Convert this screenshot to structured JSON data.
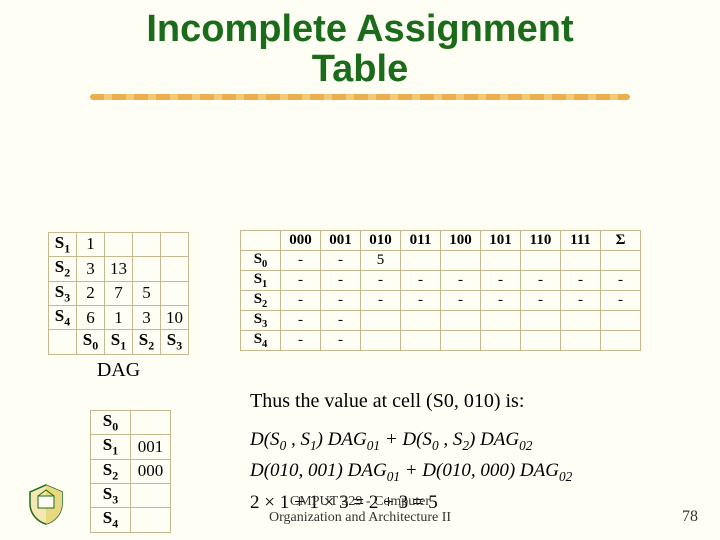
{
  "title_line1": "Incomplete Assignment",
  "title_line2": "Table",
  "dag": {
    "label": "DAG",
    "row_headers": [
      "S₁",
      "S₂",
      "S₃",
      "S₄"
    ],
    "col_headers": [
      "S₀",
      "S₁",
      "S₂",
      "S₃"
    ],
    "rows": [
      [
        "1",
        "",
        "",
        ""
      ],
      [
        "3",
        "13",
        "",
        ""
      ],
      [
        "2",
        "7",
        "5",
        ""
      ],
      [
        "6",
        "1",
        "3",
        "10"
      ]
    ]
  },
  "assign": {
    "row_headers": [
      "S₀",
      "S₁",
      "S₂",
      "S₃",
      "S₄"
    ],
    "col_headers": [
      "000",
      "001",
      "010",
      "011",
      "100",
      "101",
      "110",
      "111",
      "Σ"
    ],
    "rows": [
      [
        "-",
        "-",
        "5",
        "",
        "",
        "",
        "",
        "",
        ""
      ],
      [
        "-",
        "-",
        "-",
        "-",
        "-",
        "-",
        "-",
        "-",
        "-"
      ],
      [
        "-",
        "-",
        "-",
        "-",
        "-",
        "-",
        "-",
        "-",
        "-"
      ],
      [
        "-",
        "-",
        "",
        "",
        "",
        "",
        "",
        "",
        ""
      ],
      [
        "-",
        "-",
        "",
        "",
        "",
        "",
        "",
        "",
        ""
      ]
    ]
  },
  "small": {
    "rows": [
      [
        "S₀",
        ""
      ],
      [
        "S₁",
        "001"
      ],
      [
        "S₂",
        "000"
      ],
      [
        "S₃",
        ""
      ],
      [
        "S₄",
        ""
      ]
    ]
  },
  "thus_text": "Thus the value at cell (S0, 010) is:",
  "eq1": "D(S₀ , S₁) DAG₀₁ + D(S₀ , S₂) DAG₀₂",
  "eq2": "D(010, 001) DAG₀₁ + D(010, 000) DAG₀₂",
  "eq3": "2 × 1 + 1 × 3 = 2 + 3 = 5",
  "footer_line1": "CMPUT 329 - Computer",
  "footer_line2": "Organization and Architecture II",
  "page": "78",
  "colors": {
    "bg": "#fffef5",
    "title": "#1a6b1a",
    "border": "#c8b890",
    "underline1": "#e8a030",
    "underline2": "#f0c060"
  }
}
